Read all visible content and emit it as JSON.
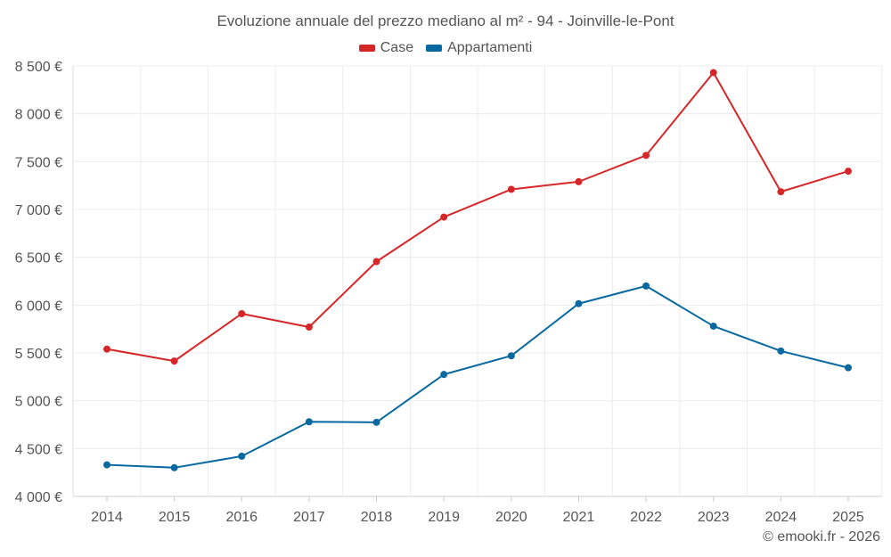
{
  "chart_data": {
    "type": "line",
    "title": "Evoluzione annuale del prezzo mediano al m² - 94 - Joinville-le-Pont",
    "categories": [
      "2014",
      "2015",
      "2016",
      "2017",
      "2018",
      "2019",
      "2020",
      "2021",
      "2022",
      "2023",
      "2024",
      "2025"
    ],
    "series": [
      {
        "name": "Case",
        "color": "#d62728",
        "values": [
          5540,
          5415,
          5910,
          5770,
          6455,
          6920,
          7210,
          7290,
          7565,
          8430,
          7185,
          7400
        ]
      },
      {
        "name": "Appartamenti",
        "color": "#0868a0",
        "values": [
          4330,
          4300,
          4420,
          4780,
          4775,
          5275,
          5470,
          6015,
          6200,
          5780,
          5520,
          5345
        ]
      }
    ],
    "y_ticks": [
      4000,
      4500,
      5000,
      5500,
      6000,
      6500,
      7000,
      7500,
      8000,
      8500
    ],
    "y_tick_labels": [
      "4 000 €",
      "4 500 €",
      "5 000 €",
      "5 500 €",
      "6 000 €",
      "6 500 €",
      "7 000 €",
      "7 500 €",
      "8 000 €",
      "8 500 €"
    ],
    "ylim": [
      4000,
      8500
    ],
    "xlabel": "",
    "ylabel": "",
    "grid": true,
    "legend_position": "top-center",
    "credit": "© emooki.fr - 2026"
  }
}
